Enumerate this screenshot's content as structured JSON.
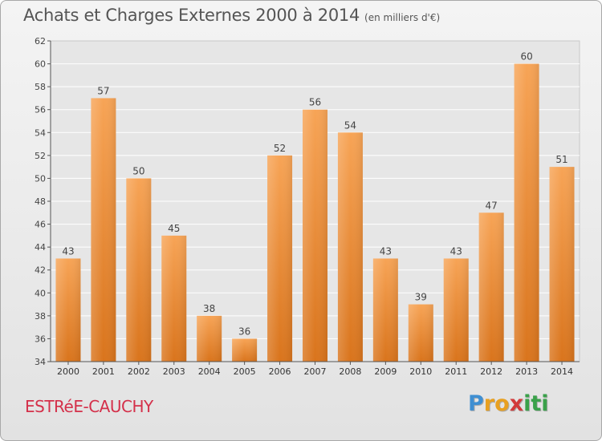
{
  "header": {
    "title": "Achats et Charges Externes 2000 à 2014",
    "subtitle": "(en milliers d'€)"
  },
  "footer": {
    "city": "ESTRéE-CAUCHY",
    "logo_letters": [
      "P",
      "r",
      "o",
      "x",
      "i",
      "t",
      "i"
    ],
    "logo_colors": [
      "#3f8fd2",
      "#e8a020",
      "#e8a020",
      "#d23a3a",
      "#3aa14a",
      "#3aa14a",
      "#3aa14a"
    ]
  },
  "chart_data": {
    "type": "bar",
    "categories": [
      "2000",
      "2001",
      "2002",
      "2003",
      "2004",
      "2005",
      "2006",
      "2007",
      "2008",
      "2009",
      "2010",
      "2011",
      "2012",
      "2013",
      "2014"
    ],
    "values": [
      43,
      57,
      50,
      45,
      38,
      36,
      52,
      56,
      54,
      43,
      39,
      43,
      47,
      60,
      51
    ],
    "ylim": [
      34,
      62
    ],
    "yticks": [
      34,
      36,
      38,
      40,
      42,
      44,
      46,
      48,
      50,
      52,
      54,
      56,
      58,
      60,
      62
    ],
    "grid": true,
    "bar_color_top": "#f7a456",
    "bar_color_bottom": "#d9741c"
  }
}
